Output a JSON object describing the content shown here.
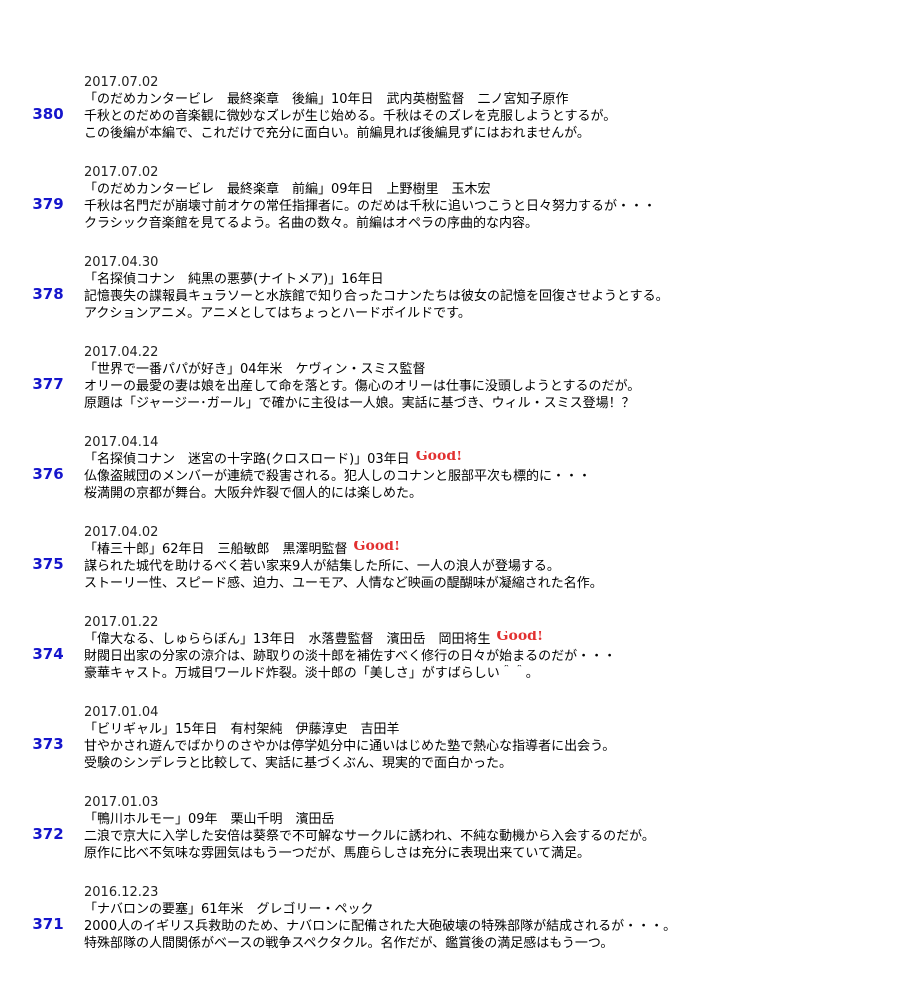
{
  "entries": [
    {
      "number": "380",
      "date": "2017.07.02",
      "title": "「のだめカンタービレ　最終楽章　後編」10年日　武内英樹監督　二ノ宮知子原作",
      "good": "",
      "line1": "千秋とのだめの音楽観に微妙なズレが生じ始める。千秋はそのズレを克服しようとするが。",
      "line2": "この後編が本編で、これだけで充分に面白い。前編見れば後編見ずにはおれませんが。"
    },
    {
      "number": "379",
      "date": "2017.07.02",
      "title": "「のだめカンタービレ　最終楽章　前編」09年日　上野樹里　玉木宏",
      "good": "",
      "line1": "千秋は名門だが崩壊寸前オケの常任指揮者に。のだめは千秋に追いつこうと日々努力するが・・・",
      "line2": "クラシック音楽館を見てるよう。名曲の数々。前編はオペラの序曲的な内容。"
    },
    {
      "number": "378",
      "date": "2017.04.30",
      "title": "「名探偵コナン　純黒の悪夢(ナイトメア)」16年日",
      "good": "",
      "line1": "記憶喪失の諜報員キュラソーと水族館で知り合ったコナンたちは彼女の記憶を回復させようとする。",
      "line2": "アクションアニメ。アニメとしてはちょっとハードボイルドです。"
    },
    {
      "number": "377",
      "date": "2017.04.22",
      "title": "「世界で一番パパが好き」04年米　ケヴィン・スミス監督",
      "good": "",
      "line1": "オリーの最愛の妻は娘を出産して命を落とす。傷心のオリーは仕事に没頭しようとするのだが。",
      "line2": "原題は「ジャージー･ガール」で確かに主役は一人娘。実話に基づき、ウィル・スミス登場！？"
    },
    {
      "number": "376",
      "date": "2017.04.14",
      "title": "「名探偵コナン　迷宮の十字路(クロスロード)」03年日",
      "good": "Good!",
      "line1": "仏像盗賊団のメンバーが連続で殺害される。犯人しのコナンと服部平次も標的に・・・",
      "line2": "桜満開の京都が舞台。大阪弁炸裂で個人的には楽しめた。"
    },
    {
      "number": "375",
      "date": "2017.04.02",
      "title": "「椿三十郎」62年日　三船敏郎　黒澤明監督",
      "good": "Good!",
      "line1": "謀られた城代を助けるべく若い家来9人が結集した所に、一人の浪人が登場する。",
      "line2": "ストーリー性、スピード感、迫力、ユーモア、人情など映画の醍醐味が凝縮された名作。"
    },
    {
      "number": "374",
      "date": "2017.01.22",
      "title": "「偉大なる、しゅららぼん」13年日　水落豊監督　濱田岳　岡田将生",
      "good": "Good!",
      "line1": "財閥日出家の分家の涼介は、跡取りの淡十郎を補佐すべく修行の日々が始まるのだが・・・",
      "line2": "豪華キャスト。万城目ワールド炸裂。淡十郎の「美しさ」がすばらしい＾＾。"
    },
    {
      "number": "373",
      "date": "2017.01.04",
      "title": "「ビリギャル」15年日　有村架純　伊藤淳史　吉田羊",
      "good": "",
      "line1": "甘やかされ遊んでばかりのさやかは停学処分中に通いはじめた塾で熱心な指導者に出会う。",
      "line2": "受験のシンデレラと比較して、実話に基づくぶん、現実的で面白かった。"
    },
    {
      "number": "372",
      "date": "2017.01.03",
      "title": "「鴨川ホルモー」09年　栗山千明　濱田岳",
      "good": "",
      "line1": "二浪で京大に入学した安倍は葵祭で不可解なサークルに誘われ、不純な動機から入会するのだが。",
      "line2": "原作に比べ不気味な雰囲気はもう一つだが、馬鹿らしさは充分に表現出来ていて満足。"
    },
    {
      "number": "371",
      "date": "2016.12.23",
      "title": "「ナバロンの要塞」61年米　グレゴリー・ペック",
      "good": "",
      "line1": "2000人のイギリス兵救助のため、ナバロンに配備された大砲破壊の特殊部隊が結成されるが・・・。",
      "line2": "特殊部隊の人間関係がベースの戦争スペクタクル。名作だが、鑑賞後の満足感はもう一つ。"
    }
  ]
}
